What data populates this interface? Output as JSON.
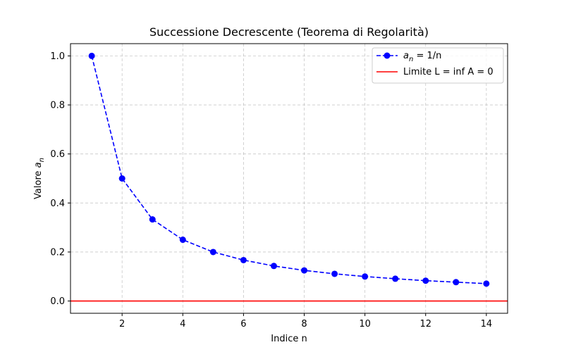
{
  "chart_data": {
    "type": "line",
    "title": "Successione Decrescente (Teorema di Regolarità)",
    "xlabel": "Indice n",
    "ylabel_prefix": "Valore ",
    "ylabel_math_base": "a",
    "ylabel_math_sub": "n",
    "xlim": [
      0.3,
      14.7
    ],
    "ylim": [
      -0.05,
      1.05
    ],
    "xticks": [
      2,
      4,
      6,
      8,
      10,
      12,
      14
    ],
    "xtick_labels": [
      "2",
      "4",
      "6",
      "8",
      "10",
      "12",
      "14"
    ],
    "yticks": [
      0.0,
      0.2,
      0.4,
      0.6,
      0.8,
      1.0
    ],
    "ytick_labels": [
      "0.0",
      "0.2",
      "0.4",
      "0.6",
      "0.8",
      "1.0"
    ],
    "grid": true,
    "legend_position": "top-right",
    "series": [
      {
        "name": "a_n = 1/n",
        "legend_base": "a",
        "legend_sub": "n",
        "legend_rest": " = 1/n",
        "color": "#0000ff",
        "style": "dashed-with-circle-markers",
        "x": [
          1,
          2,
          3,
          4,
          5,
          6,
          7,
          8,
          9,
          10,
          11,
          12,
          13,
          14
        ],
        "y": [
          1.0,
          0.5,
          0.333,
          0.25,
          0.2,
          0.167,
          0.143,
          0.125,
          0.111,
          0.1,
          0.091,
          0.083,
          0.077,
          0.071
        ]
      }
    ],
    "reference_lines": [
      {
        "name": "Limite L = inf A = 0",
        "y": 0,
        "color": "#ff0000",
        "style": "solid"
      }
    ]
  }
}
